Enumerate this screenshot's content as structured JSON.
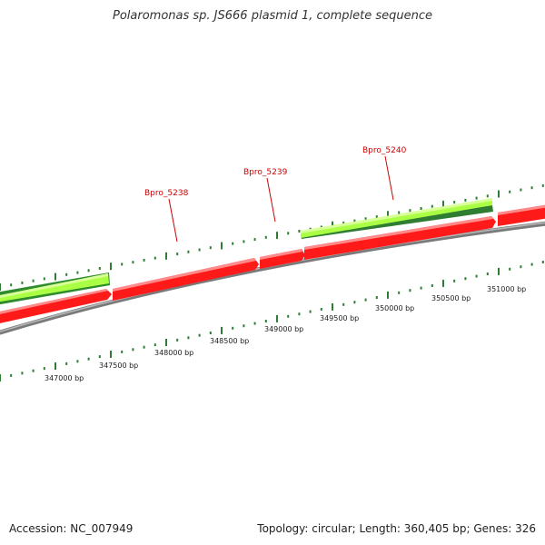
{
  "title": "Polaromonas sp. JS666 plasmid 1, complete sequence",
  "footer": {
    "accession": "Accession: NC_007949",
    "summary": "Topology: circular; Length: 360,405 bp; Genes: 326"
  },
  "colors": {
    "forward_gene": "#ff1a1a",
    "annotation_light": "#aaff44",
    "annotation_dark": "#2e8b2e",
    "backbone": "#8a8a8a",
    "tick": "#2e7d32",
    "gene_label": "#cc0000"
  },
  "gene_labels": [
    {
      "id": "bpro5238",
      "text": "Bpro_5238"
    },
    {
      "id": "bpro5239",
      "text": "Bpro_5239"
    },
    {
      "id": "bpro5240",
      "text": "Bpro_5240"
    }
  ],
  "position_labels": [
    "347000 bp",
    "347500 bp",
    "348000 bp",
    "348500 bp",
    "349000 bp",
    "349500 bp",
    "350000 bp",
    "350500 bp",
    "351000 bp"
  ]
}
